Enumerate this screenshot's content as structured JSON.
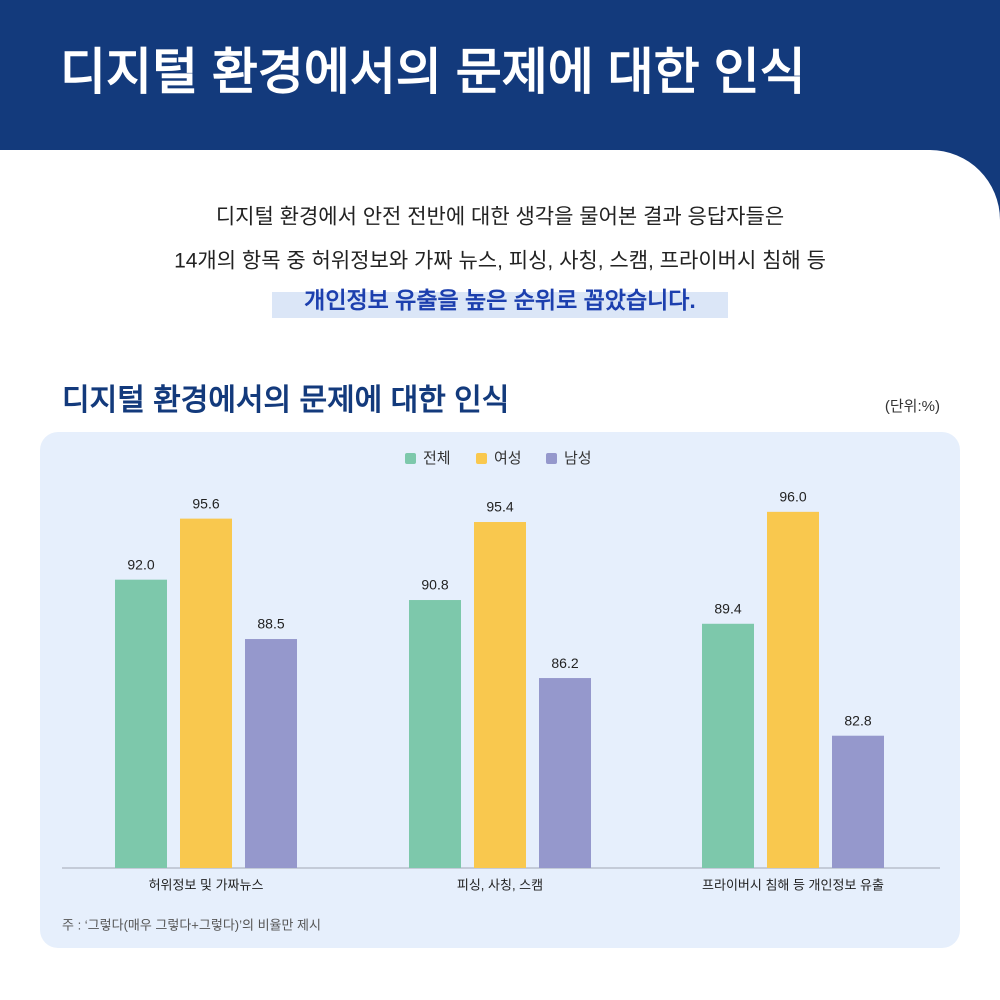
{
  "header": {
    "title": "디지털 환경에서의 문제에 대한 인식"
  },
  "intro": {
    "lines": [
      "디지털 환경에서 안전 전반에 대한 생각을 물어본 결과 응답자들은",
      "14개의 항목 중 허위정보와 가짜 뉴스, 피싱, 사칭, 스캠, 프라이버시 침해 등"
    ],
    "highlight": "개인정보 유출을 높은 순위로 꼽았습니다."
  },
  "chart_data": {
    "type": "bar",
    "title": "디지털 환경에서의 문제에 대한 인식",
    "unit": "(단위:%)",
    "categories": [
      "허위정보 및 가짜뉴스",
      "피싱, 사칭, 스캠",
      "프라이버시 침해 등 개인정보 유출"
    ],
    "series": [
      {
        "name": "전체",
        "color": "#7dc8ab",
        "values": [
          92.0,
          90.8,
          89.4
        ],
        "value_labels": [
          "92.0",
          "90.8",
          "89.4"
        ]
      },
      {
        "name": "여성",
        "color": "#f9c84e",
        "values": [
          95.6,
          95.4,
          96.0
        ],
        "value_labels": [
          "95.6",
          "95.4",
          "96.0"
        ]
      },
      {
        "name": "남성",
        "color": "#9598cc",
        "values": [
          88.5,
          86.2,
          82.8
        ],
        "value_labels": [
          "88.5",
          "86.2",
          "82.8"
        ]
      }
    ],
    "ylim": [
      75,
      100
    ],
    "legend": "top",
    "note": "주 : ‘그렇다(매우 그렇다+그렇다)’의 비율만 제시"
  }
}
